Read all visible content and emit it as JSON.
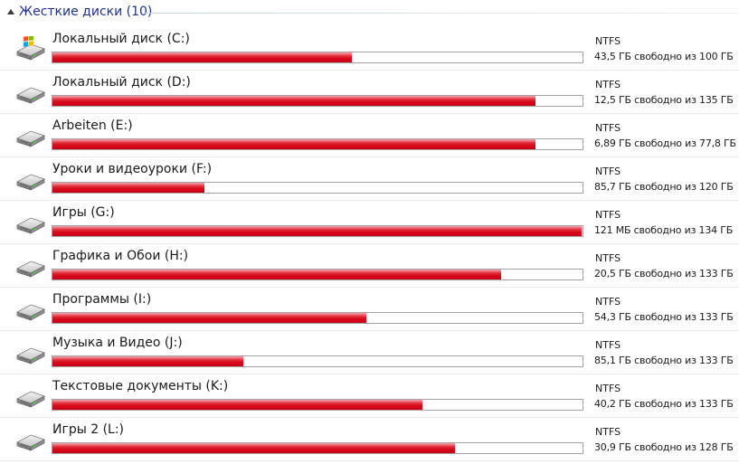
{
  "group": {
    "title": "Жесткие диски (10)"
  },
  "colors": {
    "bar_fill": "#d6091a",
    "group_title": "#1e3287"
  },
  "drives": [
    {
      "name": "Локальный диск (C:)",
      "fs": "NTFS",
      "space": "43,5 ГБ свободно из 100 ГБ",
      "used_fraction": 0.565,
      "icon": "windows-drive-icon"
    },
    {
      "name": "Локальный диск (D:)",
      "fs": "NTFS",
      "space": "12,5 ГБ свободно из 135 ГБ",
      "used_fraction": 0.911,
      "icon": "hard-drive-icon"
    },
    {
      "name": "Arbeiten (E:)",
      "fs": "NTFS",
      "space": "6,89 ГБ свободно из 77,8 ГБ",
      "used_fraction": 0.911,
      "icon": "hard-drive-icon"
    },
    {
      "name": "Уроки и видеоуроки (F:)",
      "fs": "NTFS",
      "space": "85,7 ГБ свободно из 120 ГБ",
      "used_fraction": 0.286,
      "icon": "hard-drive-icon"
    },
    {
      "name": "Игры (G:)",
      "fs": "NTFS",
      "space": "121 МБ свободно из 134 ГБ",
      "used_fraction": 0.999,
      "icon": "hard-drive-icon"
    },
    {
      "name": "Графика и Обои (H:)",
      "fs": "NTFS",
      "space": "20,5 ГБ свободно из 133 ГБ",
      "used_fraction": 0.846,
      "icon": "hard-drive-icon"
    },
    {
      "name": "Программы (I:)",
      "fs": "NTFS",
      "space": "54,3 ГБ свободно из 133 ГБ",
      "used_fraction": 0.592,
      "icon": "hard-drive-icon"
    },
    {
      "name": "Музыка и Видео (J:)",
      "fs": "NTFS",
      "space": "85,1 ГБ свободно из 133 ГБ",
      "used_fraction": 0.36,
      "icon": "hard-drive-icon"
    },
    {
      "name": "Текстовые документы (K:)",
      "fs": "NTFS",
      "space": "40,2 ГБ свободно из 133 ГБ",
      "used_fraction": 0.698,
      "icon": "hard-drive-icon"
    },
    {
      "name": "Игры 2 (L:)",
      "fs": "NTFS",
      "space": "30,9 ГБ свободно из 128 ГБ",
      "used_fraction": 0.759,
      "icon": "hard-drive-icon"
    }
  ]
}
